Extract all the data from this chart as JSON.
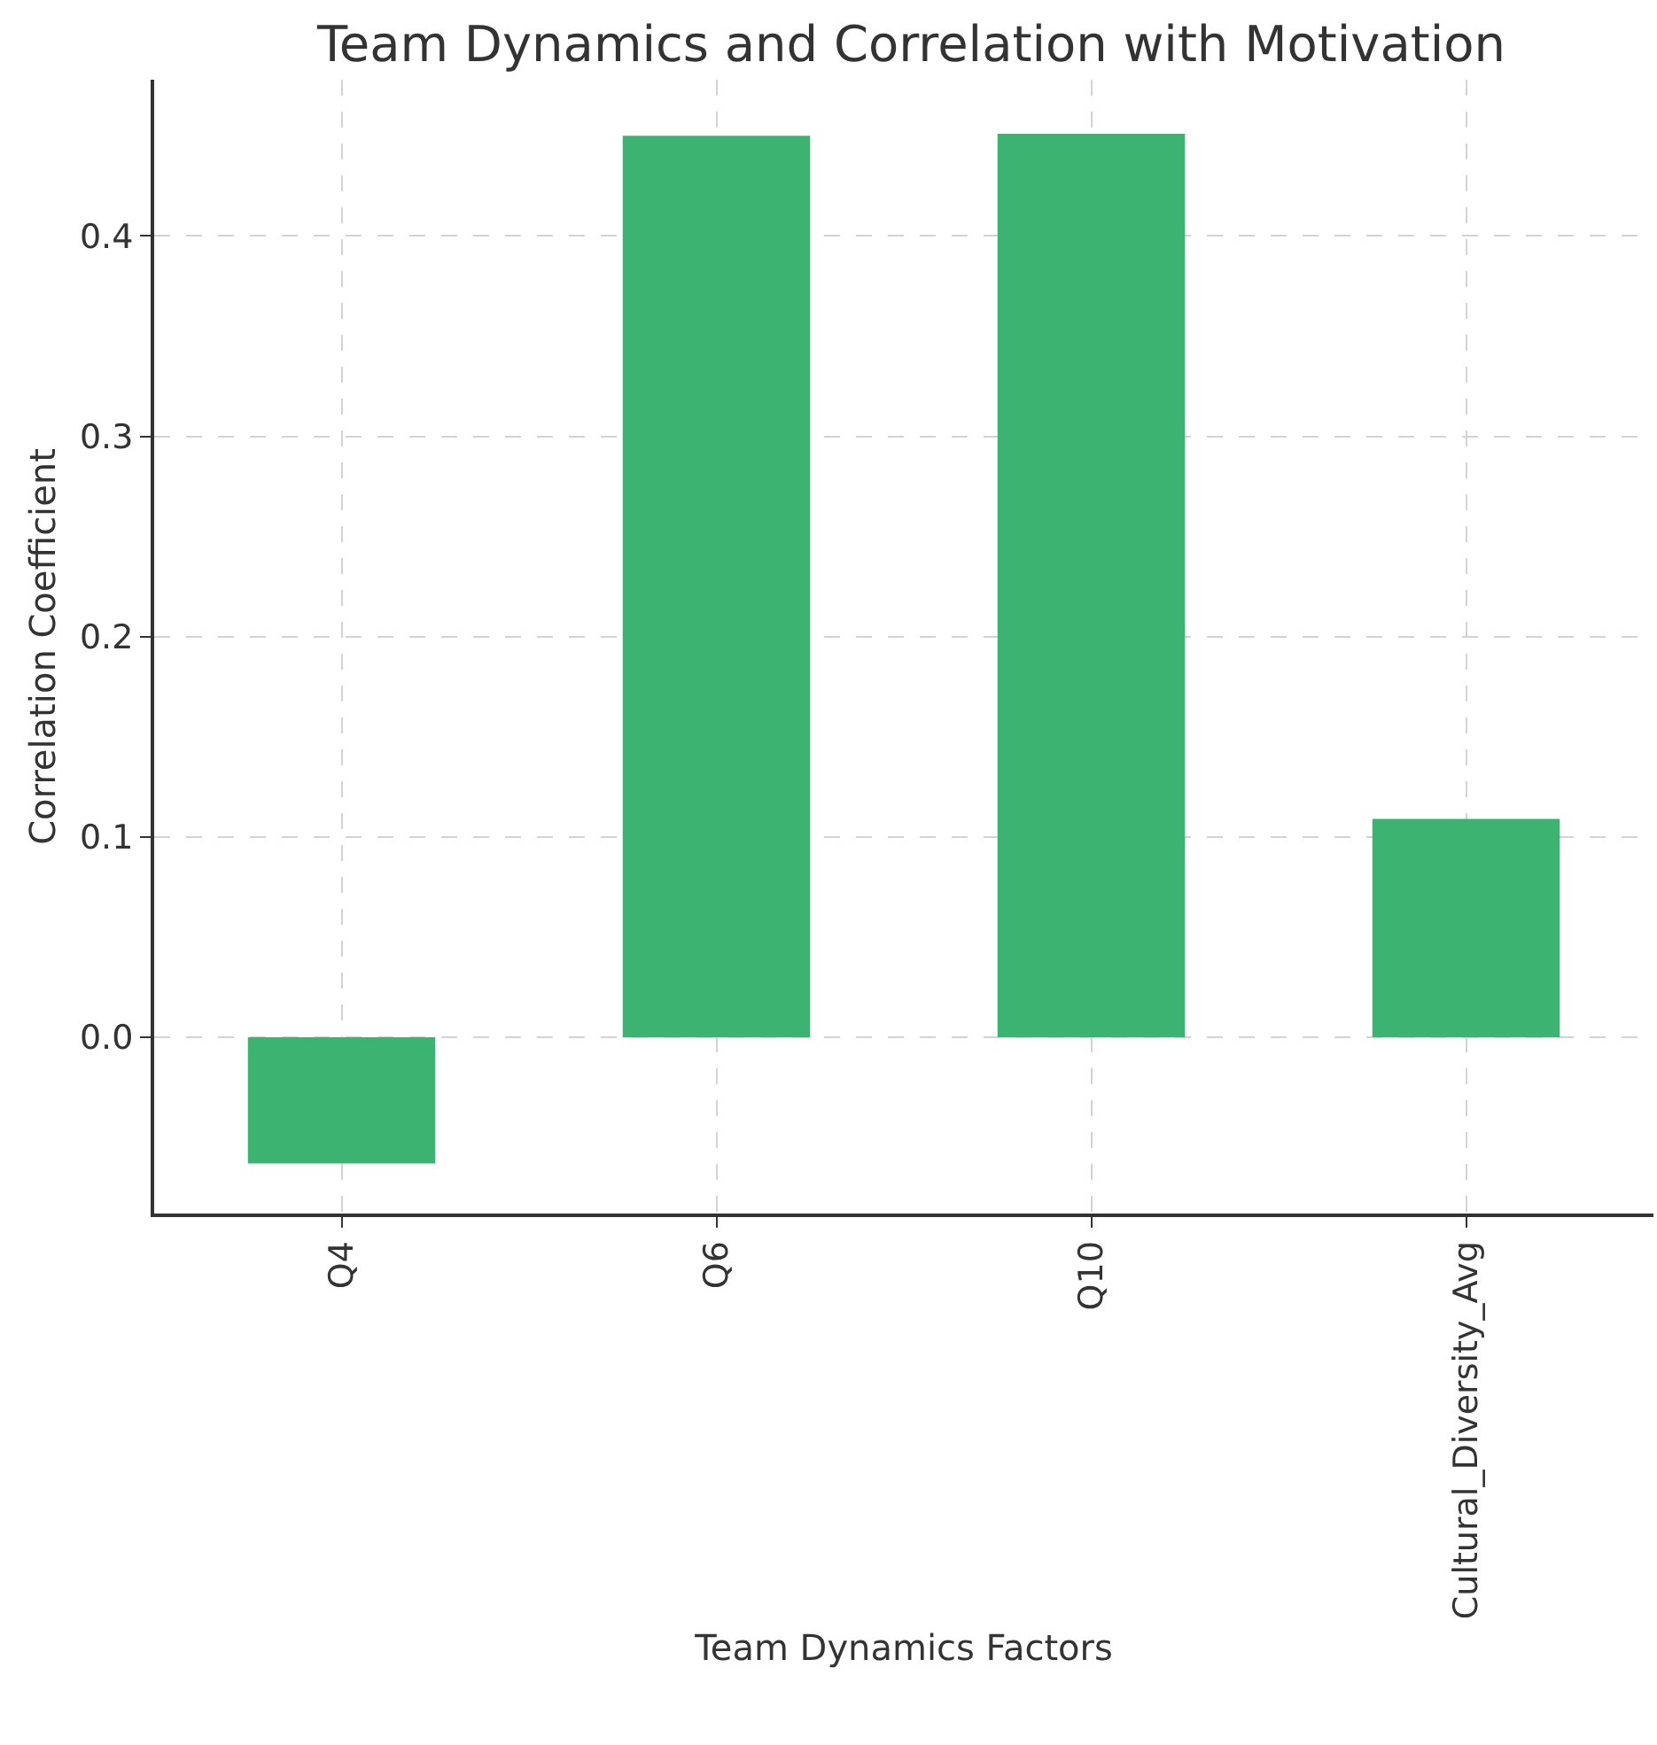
{
  "chart_data": {
    "type": "bar",
    "title": "Team Dynamics and Correlation with Motivation",
    "xlabel": "Team Dynamics Factors",
    "ylabel": "Correlation Coefficient",
    "categories": [
      "Q4",
      "Q6",
      "Q10",
      "Cultural_Diversity_Avg"
    ],
    "values": [
      -0.063,
      0.45,
      0.451,
      0.109
    ],
    "color": "#3cb371",
    "ylim": [
      -0.088,
      0.478
    ],
    "yticks": [
      {
        "value": 0,
        "label": "0.0"
      },
      0.1,
      0.2,
      0.3,
      0.4
    ],
    "grid": true
  }
}
